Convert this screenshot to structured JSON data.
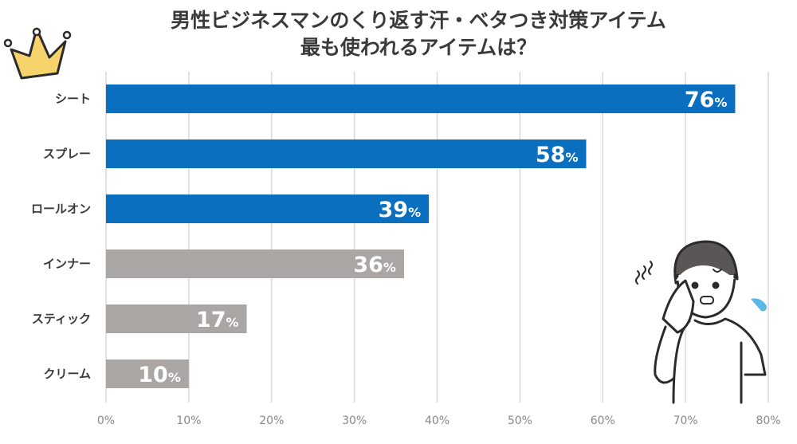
{
  "chart_data": {
    "type": "bar",
    "orientation": "horizontal",
    "title": "男性ビジネスマンのくり返す汗・ベタつき対策アイテム",
    "subtitle": "最も使われるアイテムは？",
    "categories": [
      "シート",
      "スプレー",
      "ロールオン",
      "インナー",
      "スティック",
      "クリーム"
    ],
    "values": [
      76,
      58,
      39,
      36,
      17,
      10
    ],
    "data_labels": [
      "76",
      "58",
      "39",
      "36",
      "17",
      "10"
    ],
    "data_label_unit": "%",
    "xlim": [
      0,
      80
    ],
    "xticks": [
      "0%",
      "10%",
      "20%",
      "30%",
      "40%",
      "50%",
      "60%",
      "70%",
      "80%"
    ],
    "grid": true,
    "legend": "none",
    "colors": {
      "highlight": "#0b6fc0",
      "other": "#aaa6a4",
      "grid": "#d9d9d9",
      "crown": "#f7d36b",
      "sweat": "#5bb8e6"
    },
    "highlighted_count": 3,
    "icons": [
      "crown-icon",
      "sweating-man-illustration"
    ]
  }
}
